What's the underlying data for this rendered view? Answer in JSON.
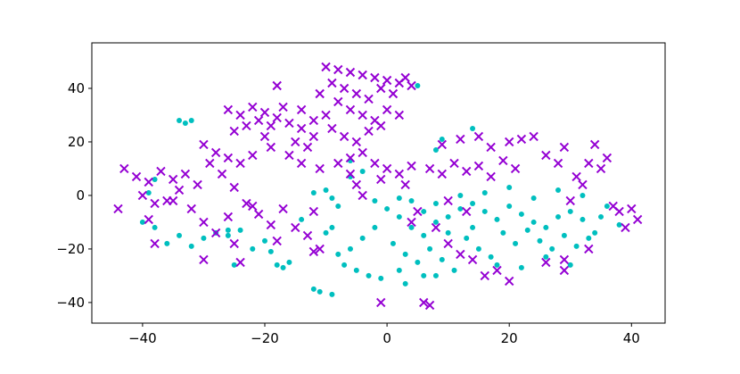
{
  "chart_data": {
    "type": "scatter",
    "xlim": [
      -48.3,
      45.5
    ],
    "ylim": [
      -47.7,
      57
    ],
    "xticks": [
      {
        "value": -40,
        "label": "−40"
      },
      {
        "value": -20,
        "label": "−20"
      },
      0,
      20,
      40
    ],
    "yticks": [
      {
        "value": -40,
        "label": "−40"
      },
      {
        "value": -20,
        "label": "−20"
      },
      0,
      20,
      40
    ],
    "series": [
      {
        "color": "#00bfbf",
        "marker": "o",
        "x": [
          0,
          2,
          4,
          6,
          8,
          10,
          12,
          14,
          16,
          18,
          20,
          22,
          24,
          26,
          28,
          30,
          32,
          34,
          36,
          38,
          1,
          3,
          5,
          7,
          9,
          11,
          13,
          15,
          17,
          19,
          21,
          23,
          25,
          27,
          29,
          31,
          33,
          35,
          -2,
          -4,
          -6,
          -8,
          -7,
          -5,
          -3,
          -1,
          2,
          6,
          -2,
          4,
          8,
          12,
          16,
          20,
          24,
          28,
          32,
          18,
          22,
          26,
          30,
          10,
          14,
          6,
          -9,
          -10,
          -11,
          -12,
          -9,
          3,
          8,
          -40,
          -38,
          -36,
          -34,
          -32,
          -30,
          -28,
          -26,
          -24,
          -22,
          -20,
          -18,
          -17,
          -16,
          -19,
          -25,
          -34,
          -33,
          -32,
          -38,
          -39,
          -12,
          -10,
          -9,
          -8,
          -6,
          -4,
          -6,
          5,
          8,
          9,
          14,
          2,
          -14,
          -26
        ],
        "values": [
          -5,
          -8,
          -12,
          -15,
          -10,
          -8,
          -5,
          -3,
          -6,
          -9,
          -4,
          -7,
          -10,
          -12,
          -8,
          -6,
          -9,
          -14,
          -4,
          -11,
          -18,
          -22,
          -25,
          -20,
          -24,
          -28,
          -16,
          -20,
          -23,
          -14,
          -18,
          -13,
          -17,
          -20,
          -15,
          -19,
          -16,
          -8,
          -12,
          -16,
          -20,
          -22,
          -26,
          -28,
          -30,
          -31,
          -28,
          -30,
          -2,
          -2,
          -3,
          0,
          1,
          3,
          -1,
          2,
          0,
          -26,
          -27,
          -23,
          -26,
          -14,
          -12,
          -6,
          -12,
          -14,
          -36,
          -35,
          -37,
          -33,
          -30,
          -10,
          -12,
          -18,
          -15,
          -19,
          -16,
          -14,
          -13,
          -13,
          -20,
          -17,
          -26,
          -27,
          -25,
          -21,
          -26,
          28,
          27,
          28,
          6,
          1,
          1,
          2,
          -1,
          -4,
          7,
          9,
          13,
          41,
          17,
          21,
          25,
          -1,
          -9,
          -15
        ]
      },
      {
        "color": "#9400d3",
        "marker": "x",
        "x": [
          -10,
          -8,
          -6,
          -4,
          -2,
          0,
          2,
          4,
          -9,
          -7,
          -5,
          -3,
          -1,
          1,
          3,
          -8,
          -6,
          -4,
          -2,
          -10,
          -12,
          -11,
          -9,
          -7,
          -5,
          -3,
          -1,
          0,
          2,
          -4,
          -6,
          -2,
          0,
          2,
          4,
          -1,
          3,
          -5,
          -26,
          -24,
          -22,
          -20,
          -18,
          -16,
          -14,
          -21,
          -19,
          -17,
          -23,
          -25,
          -15,
          -13,
          -18,
          -14,
          -12,
          -20,
          -19,
          -16,
          -14,
          -11,
          -22,
          -24,
          -43,
          -41,
          -39,
          -37,
          -35,
          -33,
          -31,
          -29,
          -27,
          -30,
          -28,
          -26,
          -25,
          -34,
          -36,
          -38,
          -40,
          -44,
          -39,
          -32,
          -30,
          -28,
          -26,
          -23,
          -21,
          -19,
          -17,
          -15,
          -13,
          -12,
          -11,
          -12,
          -25,
          -24,
          -30,
          -38,
          -22,
          -18,
          -35,
          7,
          9,
          11,
          13,
          15,
          17,
          19,
          21,
          22,
          20,
          24,
          26,
          28,
          29,
          31,
          33,
          35,
          36,
          34,
          32,
          30,
          37,
          38,
          40,
          41,
          39,
          33,
          29,
          29,
          26,
          20,
          18,
          14,
          12,
          10,
          13,
          8,
          16,
          6,
          7,
          -1,
          12,
          15,
          9,
          17,
          5,
          4,
          10,
          -4,
          -6,
          -8
        ],
        "values": [
          48,
          47,
          46,
          45,
          44,
          43,
          42,
          41,
          42,
          40,
          38,
          36,
          40,
          38,
          44,
          35,
          32,
          30,
          28,
          30,
          28,
          38,
          25,
          22,
          20,
          24,
          26,
          32,
          30,
          16,
          14,
          12,
          10,
          8,
          11,
          6,
          4,
          4,
          32,
          30,
          33,
          31,
          29,
          27,
          25,
          28,
          26,
          33,
          26,
          24,
          20,
          18,
          41,
          32,
          22,
          22,
          18,
          15,
          12,
          10,
          15,
          12,
          10,
          7,
          5,
          9,
          6,
          8,
          4,
          12,
          8,
          19,
          16,
          14,
          3,
          2,
          -2,
          -3,
          0,
          -5,
          -9,
          -5,
          -10,
          -14,
          -8,
          -3,
          -7,
          -11,
          -5,
          -12,
          -15,
          -6,
          -20,
          -21,
          -18,
          -25,
          -24,
          -18,
          -4,
          -17,
          -2,
          10,
          8,
          12,
          9,
          11,
          7,
          13,
          10,
          21,
          20,
          22,
          15,
          12,
          18,
          7,
          12,
          10,
          14,
          19,
          4,
          -2,
          -4,
          -6,
          -5,
          -9,
          -12,
          -20,
          -24,
          -28,
          -25,
          -32,
          -28,
          -24,
          -22,
          -18,
          -6,
          -12,
          -30,
          -40,
          -41,
          -40,
          21,
          22,
          19,
          18,
          -6,
          -10,
          -2,
          0,
          8,
          12
        ]
      }
    ]
  }
}
